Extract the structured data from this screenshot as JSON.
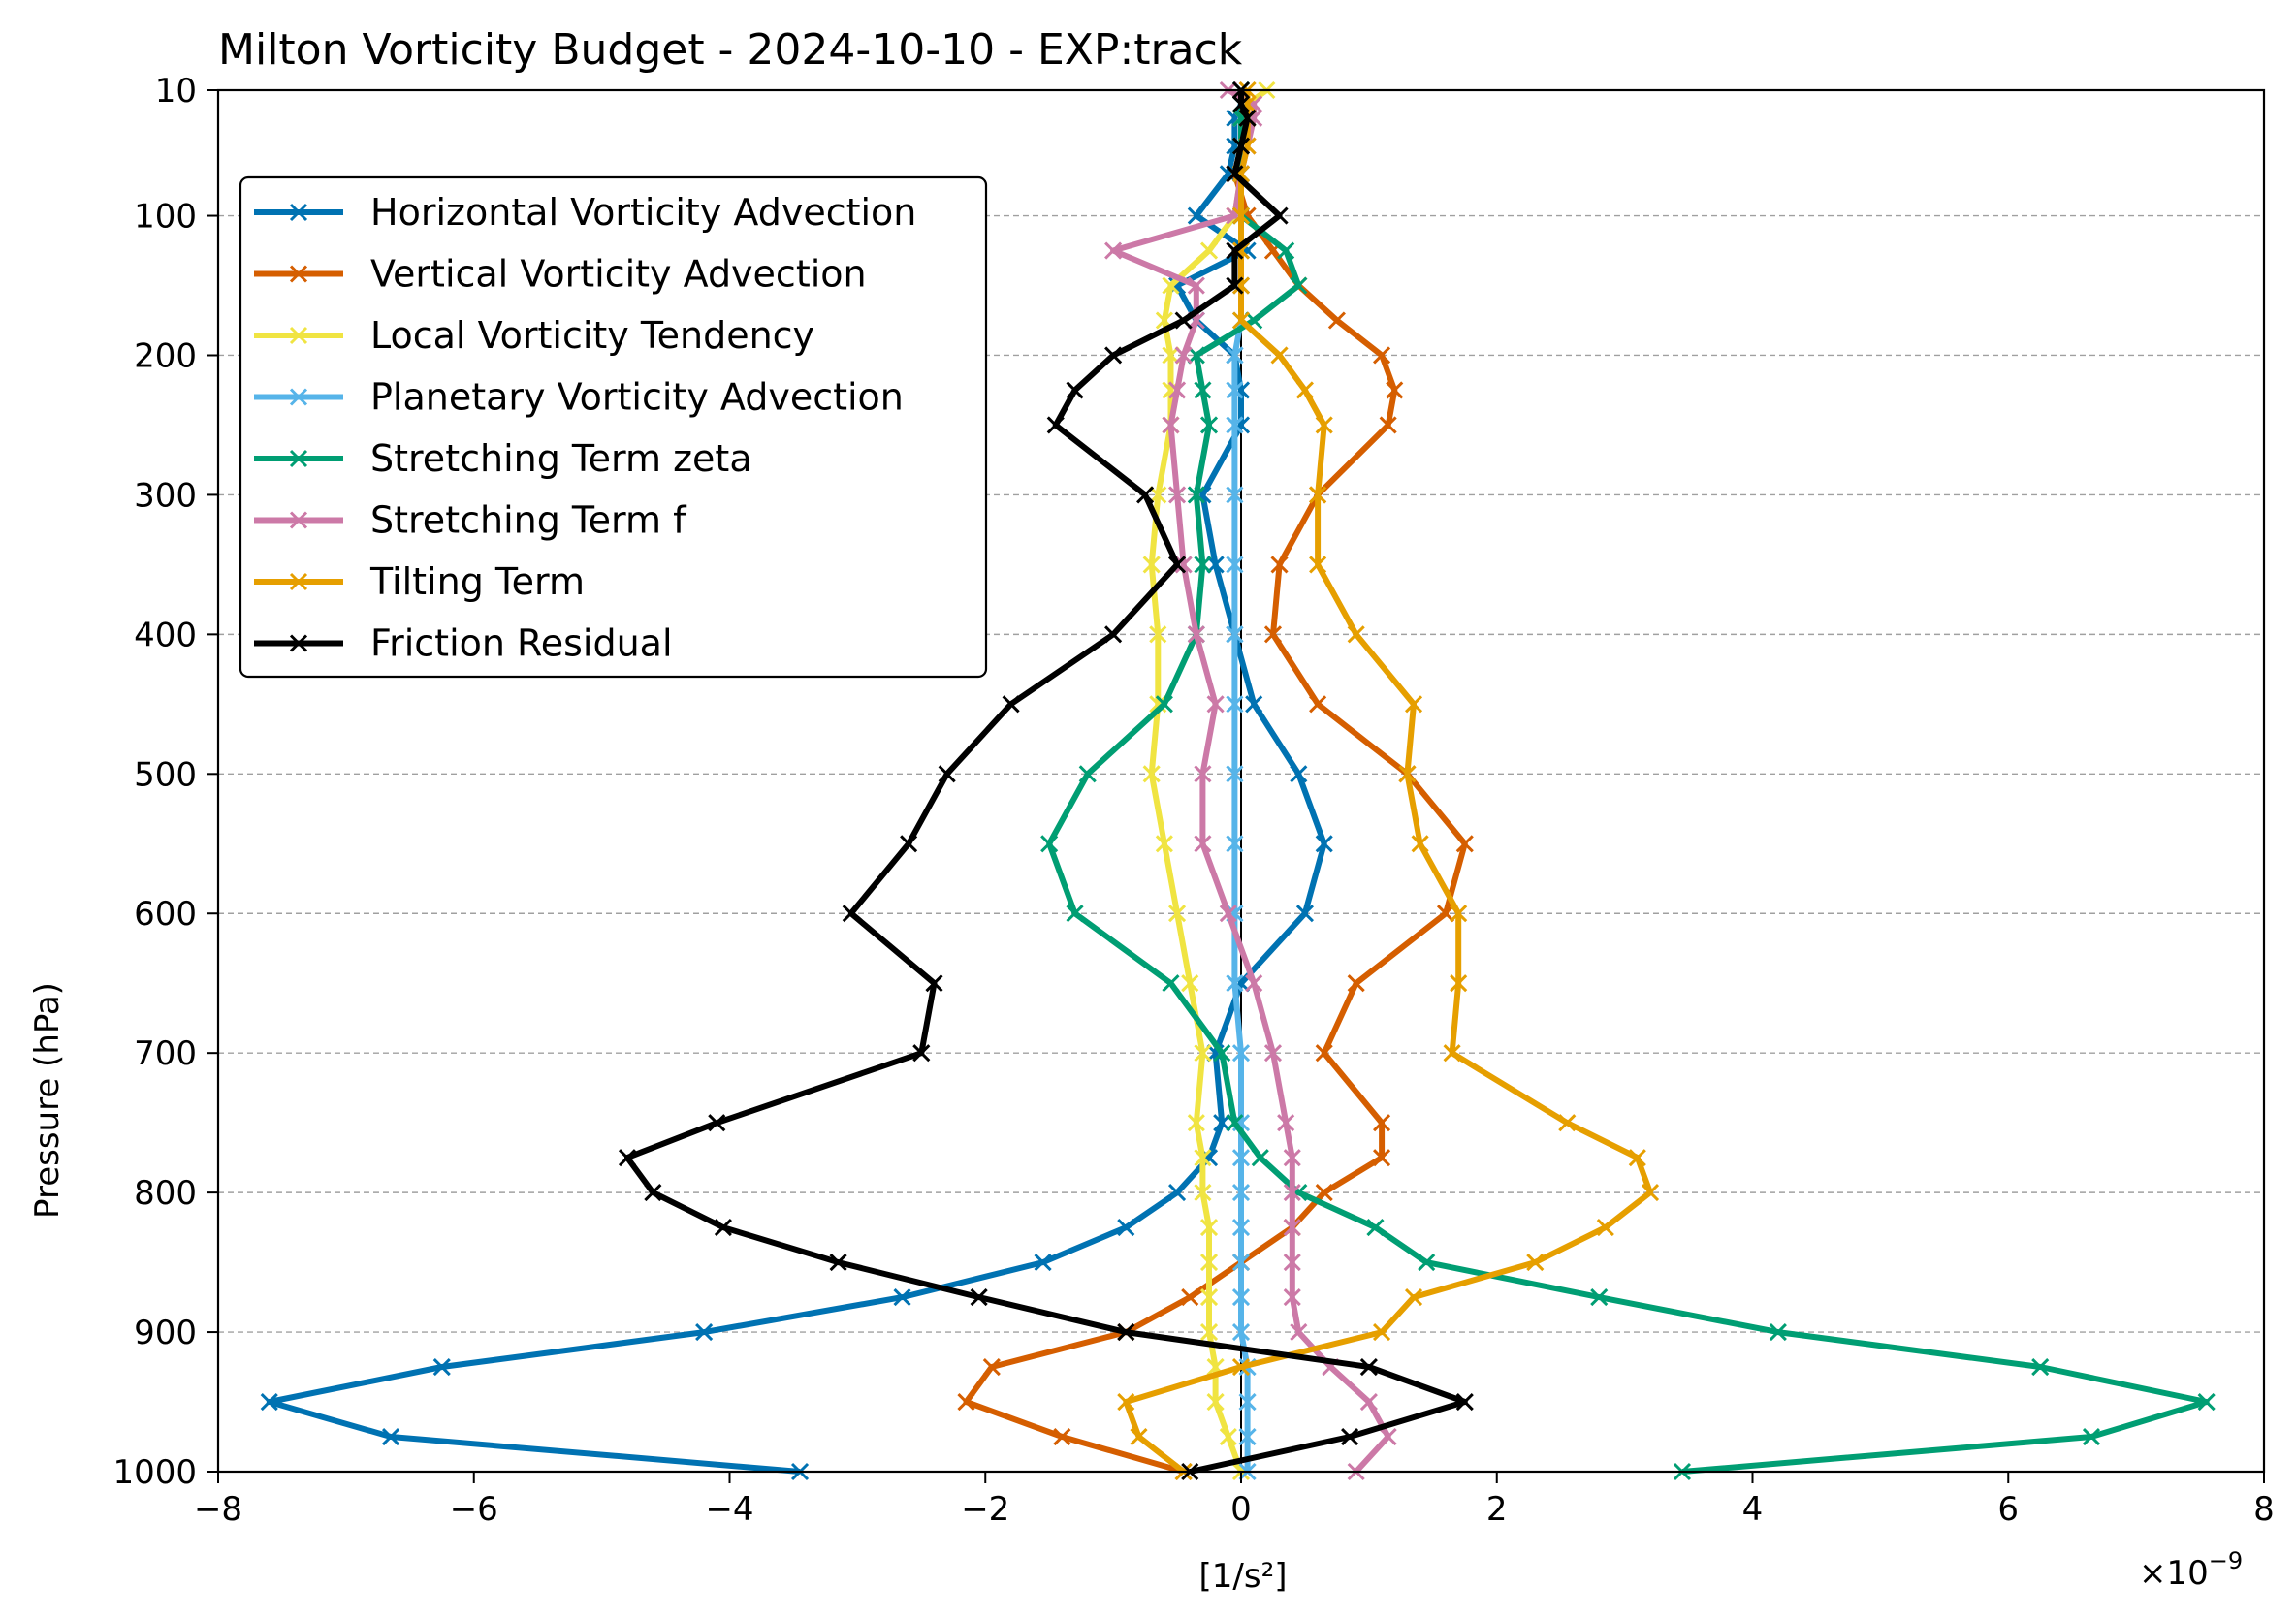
{
  "chart_data": {
    "type": "line",
    "title": "Milton Vorticity Budget - 2024-10-10 - EXP:track",
    "xlabel": "[1/s²]",
    "ylabel": "Pressure (hPa)",
    "x_scale_label": "×10",
    "x_scale_exponent": "−9",
    "xlim": [
      -8,
      8
    ],
    "ylim": [
      1000,
      10
    ],
    "x_unit_multiplier": 1e-09,
    "x_ticks": [
      -8,
      -6,
      -4,
      -2,
      0,
      2,
      4,
      6,
      8
    ],
    "x_tick_labels": [
      "−8",
      "−6",
      "−4",
      "−2",
      "0",
      "2",
      "4",
      "6",
      "8"
    ],
    "y_ticks": [
      10,
      100,
      200,
      300,
      400,
      500,
      600,
      700,
      800,
      900,
      1000
    ],
    "y_tick_labels": [
      "10",
      "100",
      "200",
      "300",
      "400",
      "500",
      "600",
      "700",
      "800",
      "900",
      "1000"
    ],
    "grid": "horizontal dashed at y ticks",
    "legend_position": "upper-left",
    "zero_line": true,
    "pressure": [
      10,
      20,
      30,
      50,
      70,
      100,
      125,
      150,
      175,
      200,
      225,
      250,
      300,
      350,
      400,
      450,
      500,
      550,
      600,
      650,
      700,
      750,
      775,
      800,
      825,
      850,
      875,
      900,
      925,
      950,
      975,
      1000
    ],
    "series": [
      {
        "name": "Horizontal Vorticity Advection",
        "color": "#0072b2",
        "values": [
          0.0,
          0.0,
          -0.05,
          -0.05,
          -0.1,
          -0.35,
          0.05,
          -0.5,
          -0.35,
          -0.05,
          0.0,
          0.0,
          -0.3,
          -0.2,
          -0.05,
          0.1,
          0.45,
          0.65,
          0.5,
          0.0,
          -0.2,
          -0.15,
          -0.25,
          -0.5,
          -0.9,
          -1.55,
          -2.65,
          -4.2,
          -6.25,
          -7.6,
          -6.65,
          -3.45
        ]
      },
      {
        "name": "Vertical Vorticity Advection",
        "color": "#d55e00",
        "values": [
          0.0,
          0.0,
          0.0,
          0.0,
          -0.05,
          0.05,
          0.25,
          0.45,
          0.75,
          1.1,
          1.2,
          1.15,
          0.6,
          0.3,
          0.25,
          0.6,
          1.3,
          1.75,
          1.6,
          0.9,
          0.65,
          1.1,
          1.1,
          0.65,
          0.4,
          0.0,
          -0.4,
          -0.9,
          -1.95,
          -2.15,
          -1.4,
          -0.45
        ]
      },
      {
        "name": "Local Vorticity Tendency",
        "color": "#f0e442",
        "values": [
          0.2,
          0.05,
          0.0,
          0.0,
          0.0,
          -0.05,
          -0.25,
          -0.55,
          -0.6,
          -0.55,
          -0.55,
          -0.55,
          -0.65,
          -0.7,
          -0.65,
          -0.65,
          -0.7,
          -0.6,
          -0.5,
          -0.4,
          -0.3,
          -0.35,
          -0.3,
          -0.3,
          -0.25,
          -0.25,
          -0.25,
          -0.25,
          -0.2,
          -0.2,
          -0.1,
          0.0
        ]
      },
      {
        "name": "Planetary Vorticity Advection",
        "color": "#56b4e9",
        "values": [
          0.0,
          0.0,
          0.0,
          0.0,
          0.0,
          0.0,
          0.0,
          0.0,
          0.0,
          -0.05,
          -0.05,
          -0.05,
          -0.05,
          -0.05,
          -0.05,
          -0.05,
          -0.05,
          -0.05,
          -0.05,
          -0.05,
          0.0,
          0.0,
          0.0,
          0.0,
          0.0,
          0.0,
          0.0,
          0.0,
          0.05,
          0.05,
          0.05,
          0.05
        ]
      },
      {
        "name": "Stretching Term zeta",
        "color": "#009e73",
        "values": [
          0.0,
          0.0,
          0.0,
          0.0,
          0.0,
          0.0,
          0.35,
          0.45,
          0.1,
          -0.35,
          -0.3,
          -0.25,
          -0.35,
          -0.3,
          -0.35,
          -0.6,
          -1.2,
          -1.5,
          -1.3,
          -0.55,
          -0.15,
          -0.05,
          0.15,
          0.45,
          1.05,
          1.45,
          2.8,
          4.2,
          6.25,
          7.55,
          6.65,
          3.45
        ]
      },
      {
        "name": "Stretching Term f",
        "color": "#cc79a7",
        "values": [
          -0.1,
          0.1,
          0.1,
          0.05,
          0.0,
          -0.05,
          -1.0,
          -0.35,
          -0.35,
          -0.45,
          -0.5,
          -0.55,
          -0.5,
          -0.45,
          -0.35,
          -0.2,
          -0.3,
          -0.3,
          -0.1,
          0.1,
          0.25,
          0.35,
          0.4,
          0.4,
          0.4,
          0.4,
          0.4,
          0.45,
          0.7,
          1.0,
          1.15,
          0.9
        ]
      },
      {
        "name": "Tilting Term",
        "color": "#e69f00",
        "values": [
          0.05,
          0.05,
          0.05,
          0.05,
          0.0,
          0.0,
          0.0,
          0.0,
          0.0,
          0.3,
          0.5,
          0.65,
          0.6,
          0.6,
          0.9,
          1.35,
          1.3,
          1.4,
          1.7,
          1.7,
          1.65,
          2.55,
          3.1,
          3.2,
          2.85,
          2.3,
          1.35,
          1.1,
          0.0,
          -0.9,
          -0.8,
          -0.45
        ]
      },
      {
        "name": "Friction Residual",
        "color": "#000000",
        "values": [
          0.0,
          0.0,
          0.05,
          0.0,
          -0.05,
          0.3,
          -0.05,
          -0.05,
          -0.45,
          -1.0,
          -1.3,
          -1.45,
          -0.75,
          -0.5,
          -1.0,
          -1.8,
          -2.3,
          -2.6,
          -3.05,
          -2.4,
          -2.5,
          -4.1,
          -4.8,
          -4.6,
          -4.05,
          -3.15,
          -2.05,
          -0.9,
          1.0,
          1.75,
          0.85,
          -0.4
        ]
      }
    ]
  }
}
